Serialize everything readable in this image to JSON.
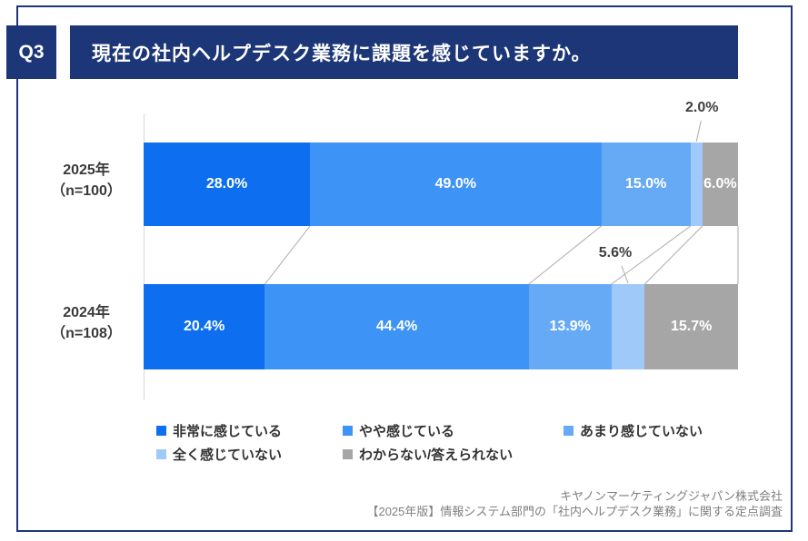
{
  "header": {
    "question_no": "Q3",
    "title": "現在の社内ヘルプデスク業務に課題を感じていますか。"
  },
  "chart_data": {
    "type": "bar",
    "orientation": "horizontal",
    "stacked": true,
    "unit": "%",
    "xlim": [
      0,
      100
    ],
    "legend_position": "bottom",
    "categories": [
      "2025年",
      "2024年"
    ],
    "category_sublabels": [
      "（n=100）",
      "（n=108）"
    ],
    "series": [
      {
        "name": "非常に感じている",
        "color": "#0d6ff0",
        "values": [
          28.0,
          20.4
        ]
      },
      {
        "name": "やや感じている",
        "color": "#3e93f7",
        "values": [
          49.0,
          44.4
        ]
      },
      {
        "name": "あまり感じていない",
        "color": "#66aaf5",
        "values": [
          15.0,
          13.9
        ]
      },
      {
        "name": "全く感じていない",
        "color": "#9ec9f8",
        "values": [
          2.0,
          5.6
        ],
        "label_outside": true
      },
      {
        "name": "わからない/答えられない",
        "color": "#a6a6a6",
        "values": [
          6.0,
          15.7
        ]
      }
    ]
  },
  "footer": {
    "company": "キヤノンマーケティングジャパン株式会社",
    "survey": "【2025年版】情報システム部門の「社内ヘルプデスク業務」に関する定点調査"
  },
  "colors": {
    "navy": "#1c3677",
    "axis": "#d9d9d9",
    "connector": "#ababab",
    "label_dark": "#3f3f3f",
    "footer_gray": "#7f7f7f"
  }
}
